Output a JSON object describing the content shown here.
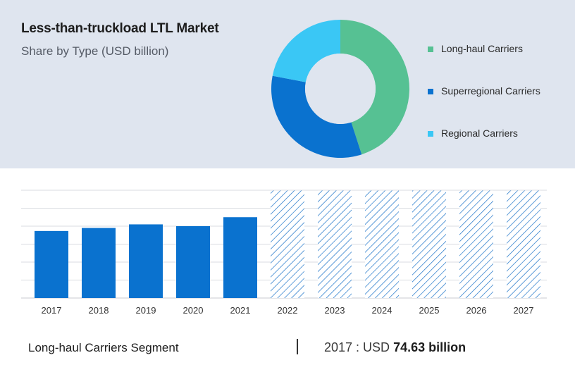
{
  "header": {
    "title": "Less-than-truckload LTL Market",
    "subtitle": "Share by Type (USD billion)"
  },
  "chart_data": [
    {
      "type": "pie",
      "variant": "donut",
      "categories": [
        "Long-haul Carriers",
        "Superregional Carriers",
        "Regional Carriers"
      ],
      "values": [
        45,
        33,
        22
      ],
      "colors": [
        "#56c193",
        "#0a72cf",
        "#3ac7f5"
      ],
      "legend_position": "right"
    },
    {
      "type": "bar",
      "categories": [
        "2017",
        "2018",
        "2019",
        "2020",
        "2021",
        "2022",
        "2023",
        "2024",
        "2025",
        "2026",
        "2027"
      ],
      "values": [
        74.63,
        78,
        82,
        80,
        90,
        null,
        null,
        null,
        null,
        null,
        null
      ],
      "forecast_categories": [
        "2022",
        "2023",
        "2024",
        "2025",
        "2026",
        "2027"
      ],
      "forecast_style": "hatched",
      "ylim": [
        0,
        120
      ],
      "grid": true,
      "bar_color": "#0a72cf",
      "hatch_color": "#1b73c8"
    }
  ],
  "footer": {
    "segment_label": "Long-haul Carriers Segment",
    "year_label": "2017 : USD",
    "value_label": "74.63 billion"
  }
}
